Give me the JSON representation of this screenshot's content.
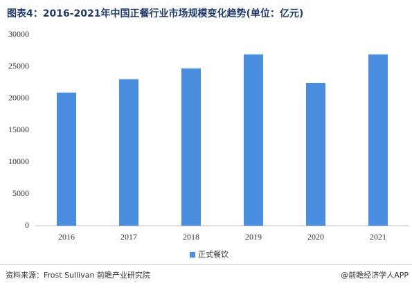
{
  "chart_data": {
    "type": "bar",
    "title": "图表4：2016-2021年中国正餐行业市场规模变化趋势(单位：亿元)",
    "categories": [
      "2016",
      "2017",
      "2018",
      "2019",
      "2020",
      "2021"
    ],
    "series": [
      {
        "name": "正式餐饮",
        "color": "#4a8ee0",
        "values": [
          20900,
          23000,
          24700,
          26900,
          22400,
          26900
        ]
      }
    ],
    "ylim": [
      0,
      30000
    ],
    "yticks": [
      0,
      5000,
      10000,
      15000,
      20000,
      25000,
      30000
    ],
    "grid": false,
    "legend": "bottom",
    "source": "资料来源：Frost Sullivan 前瞻产业研究院",
    "credit": "@前瞻经济学人APP"
  }
}
